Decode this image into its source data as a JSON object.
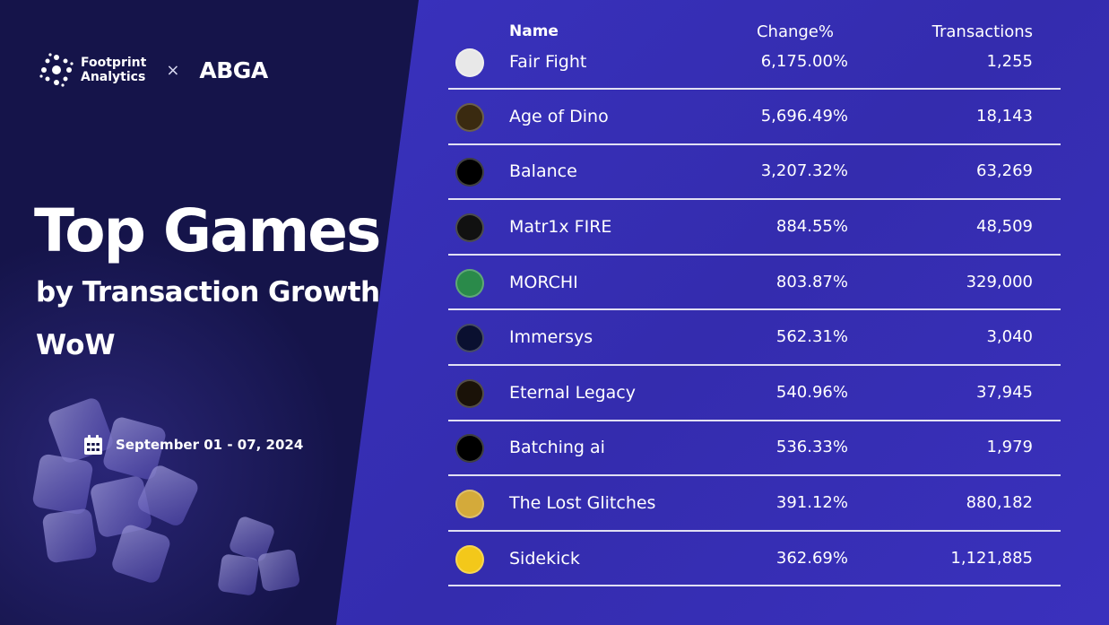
{
  "brand": {
    "partner1_line1": "Footprint",
    "partner1_line2": "Analytics",
    "separator": "×",
    "partner2": "ABGA"
  },
  "heading": {
    "title": "Top Games",
    "subtitle": "by Transaction Growth",
    "subtitle2": "WoW"
  },
  "date_range": "September 01 - 07, 2024",
  "table": {
    "headers": {
      "name": "Name",
      "change": "Change%",
      "transactions": "Transactions"
    },
    "rows": [
      {
        "name": "Fair Fight",
        "change": "6,175.00%",
        "transactions": "1,255",
        "icon": "fair-fight-icon",
        "color": "#e8e8e8"
      },
      {
        "name": "Age of Dino",
        "change": "5,696.49%",
        "transactions": "18,143",
        "icon": "age-of-dino-icon",
        "color": "#3a2a10"
      },
      {
        "name": "Balance",
        "change": "3,207.32%",
        "transactions": "63,269",
        "icon": "balance-icon",
        "color": "#000000"
      },
      {
        "name": "Matr1x FIRE",
        "change": "884.55%",
        "transactions": "48,509",
        "icon": "matr1x-fire-icon",
        "color": "#111111"
      },
      {
        "name": "MORCHI",
        "change": "803.87%",
        "transactions": "329,000",
        "icon": "morchi-icon",
        "color": "#2a8a4a"
      },
      {
        "name": "Immersys",
        "change": "562.31%",
        "transactions": "3,040",
        "icon": "immersys-icon",
        "color": "#0a1030"
      },
      {
        "name": "Eternal Legacy",
        "change": "540.96%",
        "transactions": "37,945",
        "icon": "eternal-legacy-icon",
        "color": "#1a1208"
      },
      {
        "name": "Batching ai",
        "change": "536.33%",
        "transactions": "1,979",
        "icon": "batching-ai-icon",
        "color": "#000000"
      },
      {
        "name": "The Lost Glitches",
        "change": "391.12%",
        "transactions": "880,182",
        "icon": "the-lost-glitches-icon",
        "color": "#d4aa3a"
      },
      {
        "name": "Sidekick",
        "change": "362.69%",
        "transactions": "1,121,885",
        "icon": "sidekick-icon",
        "color": "#f3c81a"
      }
    ]
  }
}
